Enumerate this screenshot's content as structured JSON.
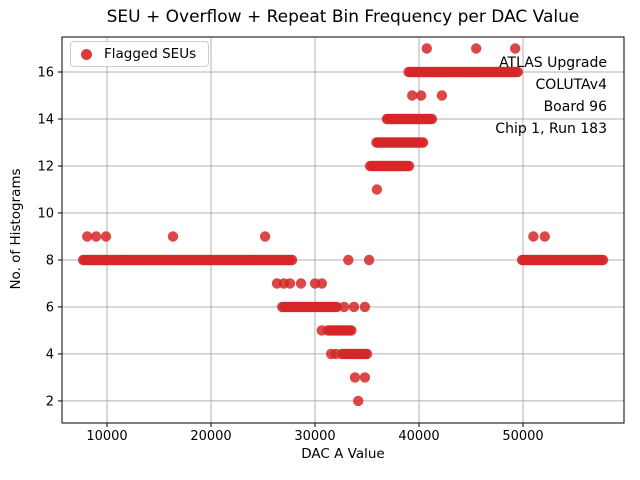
{
  "chart_data": {
    "type": "scatter",
    "title": "SEU + Overflow + Repeat Bin Frequency per DAC Value",
    "xlabel": "DAC A Value",
    "ylabel": "No. of Histograms",
    "xlim": [
      5673,
      59711
    ],
    "ylim": [
      1.06,
      17.49
    ],
    "xticks": [
      10000,
      20000,
      30000,
      40000,
      50000
    ],
    "yticks": [
      2,
      4,
      6,
      8,
      10,
      12,
      14,
      16
    ],
    "grid": true,
    "grid_color": "#b0b0b0",
    "frame_color": "#000000",
    "marker_color": "#d62728",
    "marker_alpha": 0.85,
    "marker_radius": 5.2,
    "band_step": 150,
    "legend": {
      "label": "Flagged SEUs",
      "position": "upper left"
    },
    "annotation": {
      "lines": [
        "ATLAS Upgrade",
        "COLUTAv4",
        "Board 96",
        "Chip 1, Run 183"
      ],
      "position": "upper right"
    },
    "series_name": "Flagged SEUs",
    "points": [
      {
        "y": 2,
        "dots": [
          34150
        ]
      },
      {
        "y": 3,
        "dots": [
          33850,
          34800
        ]
      },
      {
        "y": 4,
        "dots": [
          31550,
          32000
        ],
        "bands": [
          [
            32600,
            35000
          ]
        ]
      },
      {
        "y": 5,
        "dots": [
          30650
        ],
        "bands": [
          [
            31250,
            33550
          ]
        ]
      },
      {
        "y": 6,
        "dots": [
          32800,
          33750,
          34800
        ],
        "bands": [
          [
            26850,
            32100
          ]
        ]
      },
      {
        "y": 7,
        "dots": [
          26350,
          27000,
          27600,
          28650,
          30000,
          30650
        ]
      },
      {
        "y": 8,
        "dots": [
          33200,
          35200
        ],
        "bands": [
          [
            7700,
            27800
          ],
          [
            49900,
            57700
          ]
        ]
      },
      {
        "y": 9,
        "dots": [
          8100,
          8950,
          9900,
          16350,
          25200,
          51000,
          52100
        ]
      },
      {
        "y": 11,
        "dots": [
          35950
        ]
      },
      {
        "y": 12,
        "bands": [
          [
            35300,
            39100
          ]
        ]
      },
      {
        "y": 13,
        "bands": [
          [
            35900,
            40500
          ]
        ]
      },
      {
        "y": 14,
        "bands": [
          [
            36900,
            41250
          ]
        ]
      },
      {
        "y": 15,
        "dots": [
          39350,
          40200,
          42200
        ]
      },
      {
        "y": 16,
        "bands": [
          [
            39000,
            49600
          ]
        ]
      },
      {
        "y": 17,
        "dots": [
          40750,
          45500,
          49250
        ]
      }
    ]
  }
}
